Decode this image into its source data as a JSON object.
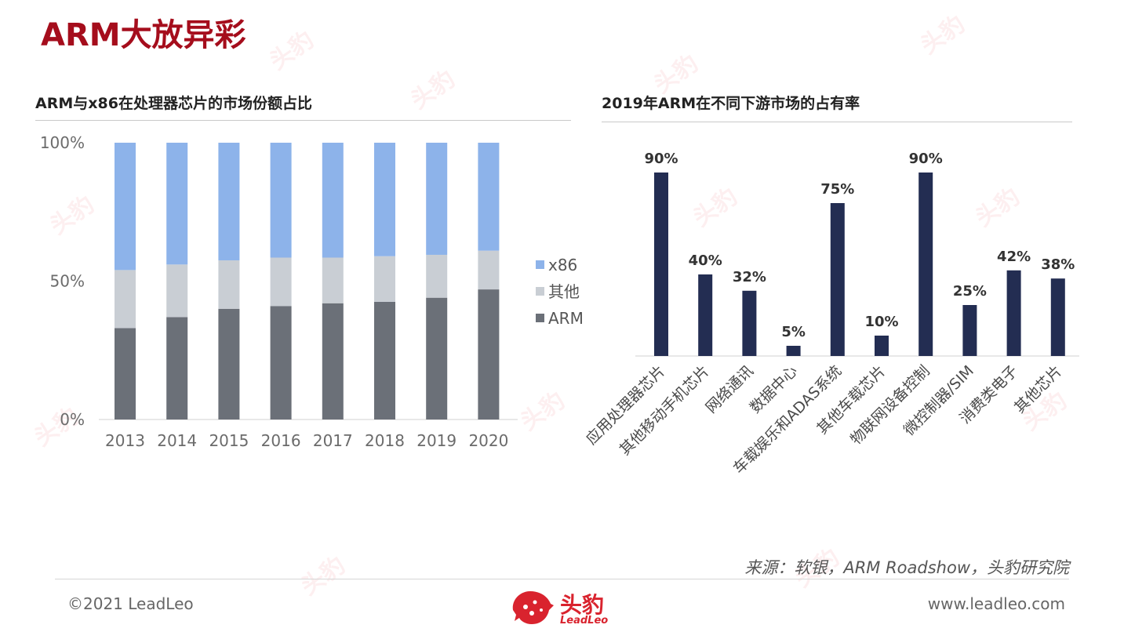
{
  "page": {
    "title": "ARM大放异彩",
    "source": "来源：软银，ARM Roadshow，头豹研究院",
    "copyright": "©2021 LeadLeo",
    "website": "www.leadleo.com",
    "logo_name": "头豹",
    "logo_sub": "LeadLeo",
    "accent_color": "#a50d1c",
    "logo_icon": "leopard-head-icon"
  },
  "watermark": {
    "text": "头豹",
    "sub": "LeadLeo"
  },
  "chart_data": [
    {
      "type": "bar",
      "stacked": true,
      "title": "ARM与x86在处理器芯片的市场份额占比",
      "categories": [
        "2013",
        "2014",
        "2015",
        "2016",
        "2017",
        "2018",
        "2019",
        "2020"
      ],
      "series": [
        {
          "name": "ARM",
          "color": "#6b7078",
          "values": [
            33,
            37,
            40,
            41,
            42,
            42.5,
            44,
            47
          ]
        },
        {
          "name": "其他",
          "color": "#c9ced4",
          "values": [
            21,
            19,
            17.5,
            17.5,
            16.5,
            16.5,
            15.5,
            14
          ]
        },
        {
          "name": "x86",
          "color": "#8db3ea",
          "values": [
            46,
            44,
            42.5,
            41.5,
            41.5,
            41,
            40.5,
            39
          ]
        }
      ],
      "ylim": [
        0,
        100
      ],
      "yticks": [
        "0%",
        "50%",
        "100%"
      ],
      "legend": "right"
    },
    {
      "type": "bar",
      "title": "2019年ARM在不同下游市场的占有率",
      "categories": [
        "应用处理器芯片",
        "其他移动手机芯片",
        "网络通讯",
        "数据中心",
        "车载娱乐和ADAS系统",
        "其他车载芯片",
        "物联网设备控制",
        "微控制器/SIM",
        "消费类电子",
        "其他芯片"
      ],
      "values": [
        90,
        40,
        32,
        5,
        75,
        10,
        90,
        25,
        42,
        38
      ],
      "labels": [
        "90%",
        "40%",
        "32%",
        "5%",
        "75%",
        "10%",
        "90%",
        "25%",
        "42%",
        "38%"
      ],
      "color": "#232d52",
      "ylim": [
        0,
        100
      ]
    }
  ]
}
